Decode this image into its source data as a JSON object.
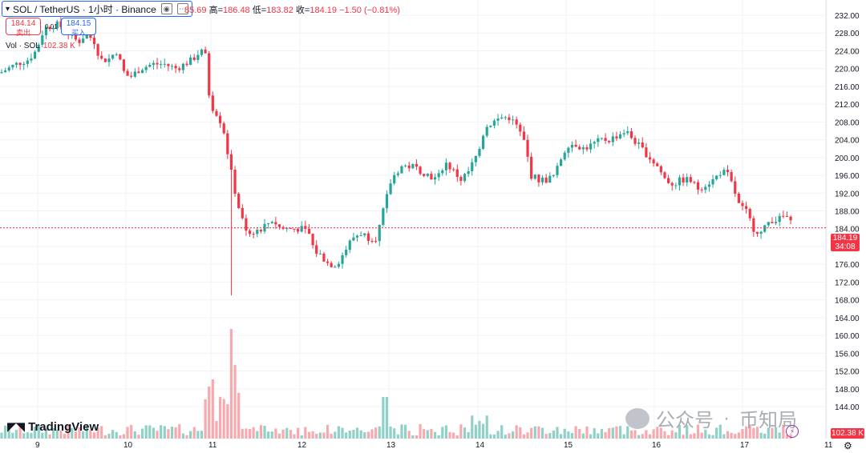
{
  "header": {
    "symbol": "SOL / TetherUS · 1小时 · Binance",
    "ohlc_prefix": "85.69",
    "high_label": "高=",
    "high": "186.48",
    "low_label": "低=",
    "low": "183.82",
    "close_label": "收=",
    "close": "184.19",
    "change": "−1.50 (−0.81%)"
  },
  "trade": {
    "sell_price": "184.14",
    "sell_label": "卖出",
    "spread": "0.01",
    "buy_price": "184.15",
    "buy_label": "买入"
  },
  "volume_legend": {
    "label": "Vol · SOL",
    "value": "102.38 K"
  },
  "price_tag": {
    "price": "184.19",
    "countdown": "34:08"
  },
  "volume_tag": "102.38 K",
  "logo_text": "TradingView",
  "watermark": {
    "text1": "公众号",
    "dot": "·",
    "text2": "币知局"
  },
  "icons": {
    "logo": "tradingview-logo-icon",
    "bolt": "lightning-icon",
    "settings": "gear-icon"
  },
  "colors": {
    "up": "#26a69a",
    "down": "#f23645",
    "vol_up": "#8fd0c7",
    "vol_down": "#f7a9ae",
    "accent": "#2962ff"
  },
  "x_axis": {
    "labels": [
      "9",
      "10",
      "11",
      "12",
      "13",
      "14",
      "15",
      "16",
      "17",
      "11"
    ]
  },
  "chart_data": {
    "type": "candlestick",
    "yaxis_ticks": [
      232,
      228,
      224,
      220,
      216,
      212,
      208,
      204,
      200,
      196,
      192,
      188,
      184,
      180,
      176,
      172,
      168,
      164,
      160,
      156,
      152,
      148,
      144
    ],
    "last_price": 184.19,
    "grid": true,
    "path_points": [
      [
        0,
        219
      ],
      [
        20,
        221
      ],
      [
        35,
        222
      ],
      [
        45,
        224
      ],
      [
        55,
        229
      ],
      [
        70,
        230
      ],
      [
        80,
        229
      ],
      [
        90,
        227
      ],
      [
        98,
        226
      ],
      [
        108,
        228
      ],
      [
        118,
        226
      ],
      [
        125,
        222
      ],
      [
        135,
        222
      ],
      [
        145,
        224
      ],
      [
        155,
        219
      ],
      [
        162,
        218
      ],
      [
        175,
        220
      ],
      [
        190,
        221
      ],
      [
        205,
        221
      ],
      [
        220,
        220
      ],
      [
        230,
        221
      ],
      [
        240,
        222
      ],
      [
        250,
        224
      ],
      [
        256,
        223
      ],
      [
        262,
        212
      ],
      [
        270,
        210
      ],
      [
        278,
        207
      ],
      [
        285,
        200
      ],
      [
        290,
        195
      ],
      [
        296,
        190
      ],
      [
        302,
        186
      ],
      [
        310,
        183
      ],
      [
        325,
        184
      ],
      [
        340,
        186
      ],
      [
        350,
        184
      ],
      [
        360,
        184
      ],
      [
        375,
        184
      ],
      [
        385,
        183
      ],
      [
        392,
        179
      ],
      [
        400,
        178
      ],
      [
        410,
        176
      ],
      [
        420,
        176
      ],
      [
        430,
        179
      ],
      [
        440,
        182
      ],
      [
        450,
        183
      ],
      [
        460,
        182
      ],
      [
        470,
        182
      ],
      [
        478,
        188
      ],
      [
        488,
        195
      ],
      [
        500,
        198
      ],
      [
        515,
        198
      ],
      [
        525,
        197
      ],
      [
        535,
        196
      ],
      [
        545,
        195
      ],
      [
        555,
        199
      ],
      [
        565,
        197
      ],
      [
        575,
        195
      ],
      [
        585,
        197
      ],
      [
        598,
        202
      ],
      [
        605,
        207
      ],
      [
        615,
        208
      ],
      [
        625,
        209
      ],
      [
        635,
        209
      ],
      [
        645,
        207
      ],
      [
        655,
        203
      ],
      [
        662,
        196
      ],
      [
        672,
        195
      ],
      [
        682,
        195
      ],
      [
        692,
        196
      ],
      [
        700,
        200
      ],
      [
        708,
        203
      ],
      [
        718,
        203
      ],
      [
        728,
        202
      ],
      [
        740,
        203
      ],
      [
        750,
        204
      ],
      [
        760,
        204
      ],
      [
        770,
        205
      ],
      [
        780,
        206
      ],
      [
        790,
        204
      ],
      [
        800,
        202
      ],
      [
        810,
        200
      ],
      [
        820,
        198
      ],
      [
        830,
        195
      ],
      [
        840,
        194
      ],
      [
        850,
        195
      ],
      [
        860,
        195
      ],
      [
        870,
        193
      ],
      [
        880,
        194
      ],
      [
        890,
        195
      ],
      [
        900,
        197
      ],
      [
        908,
        196
      ],
      [
        915,
        193
      ],
      [
        922,
        189
      ],
      [
        930,
        188
      ],
      [
        940,
        184
      ],
      [
        950,
        183
      ],
      [
        960,
        186
      ],
      [
        970,
        186
      ],
      [
        980,
        187
      ],
      [
        990,
        184
      ]
    ],
    "spike_low": 169
  }
}
